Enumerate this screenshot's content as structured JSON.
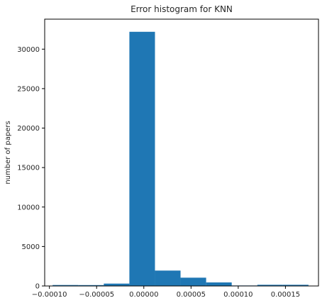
{
  "chart_data": {
    "type": "bar",
    "title": "Error histogram for KNN",
    "xlabel": "",
    "ylabel": "number of papers",
    "bar_color": "#1f77b4",
    "grid": false,
    "legend": "none",
    "xlim": [
      -0.000105,
      0.000185
    ],
    "ylim": [
      0,
      33800
    ],
    "bins": [
      {
        "x0": -9.66e-05,
        "x1": -6.95e-05,
        "value": 120
      },
      {
        "x0": -6.95e-05,
        "x1": -4.24e-05,
        "value": 110
      },
      {
        "x0": -4.24e-05,
        "x1": -1.53e-05,
        "value": 300
      },
      {
        "x0": -1.53e-05,
        "x1": 1.18e-05,
        "value": 32200
      },
      {
        "x0": 1.18e-05,
        "x1": 3.89e-05,
        "value": 1950
      },
      {
        "x0": 3.89e-05,
        "x1": 6.6e-05,
        "value": 1050
      },
      {
        "x0": 6.6e-05,
        "x1": 9.31e-05,
        "value": 450
      },
      {
        "x0": 9.31e-05,
        "x1": 0.0001202,
        "value": 60
      },
      {
        "x0": 0.0001202,
        "x1": 0.0001473,
        "value": 150
      },
      {
        "x0": 0.0001473,
        "x1": 0.0001744,
        "value": 150
      }
    ],
    "xticks": [
      {
        "value": -0.0001,
        "label": "−0.00010"
      },
      {
        "value": -5e-05,
        "label": "−0.00005"
      },
      {
        "value": 0.0,
        "label": "0.00000"
      },
      {
        "value": 5e-05,
        "label": "0.00005"
      },
      {
        "value": 0.0001,
        "label": "0.00010"
      },
      {
        "value": 0.00015,
        "label": "0.00015"
      }
    ],
    "yticks": [
      {
        "value": 0,
        "label": "0"
      },
      {
        "value": 5000,
        "label": "5000"
      },
      {
        "value": 10000,
        "label": "10000"
      },
      {
        "value": 15000,
        "label": "15000"
      },
      {
        "value": 20000,
        "label": "20000"
      },
      {
        "value": 25000,
        "label": "25000"
      },
      {
        "value": 30000,
        "label": "30000"
      }
    ]
  }
}
